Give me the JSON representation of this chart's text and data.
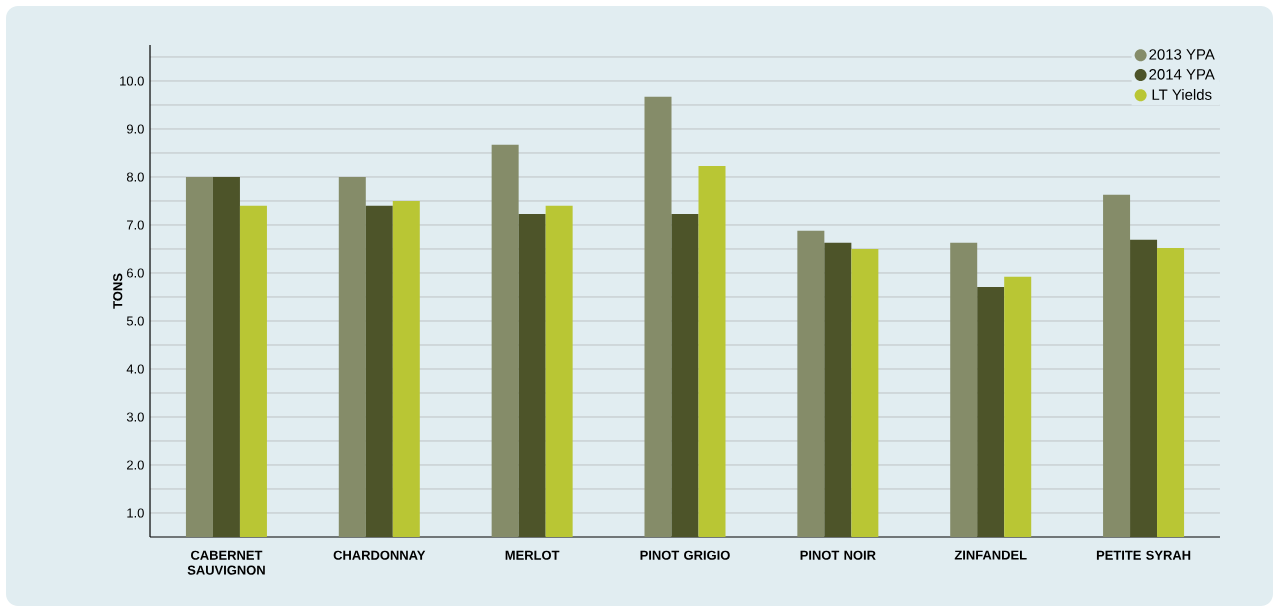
{
  "chart_data": {
    "type": "bar",
    "ylabel": "TONS",
    "categories": [
      "CABERNET SAUVIGNON",
      "CHARDONNAY",
      "MERLOT",
      "PINOT GRIGIO",
      "PINOT NOIR",
      "ZINFANDEL",
      "PETITE  SYRAH"
    ],
    "series": [
      {
        "name": "2013 YPA",
        "color": "#858c69",
        "values": [
          8.0,
          8.0,
          8.67,
          9.67,
          6.88,
          6.63,
          7.63
        ]
      },
      {
        "name": "2014 YPA",
        "color": "#4d5429",
        "values": [
          8.0,
          7.4,
          7.23,
          7.23,
          6.63,
          5.71,
          6.69
        ]
      },
      {
        "name": "LT Yields",
        "color": "#b9c634",
        "values": [
          7.4,
          7.5,
          7.4,
          8.23,
          6.5,
          5.92,
          6.52
        ]
      }
    ],
    "ylim": [
      0.5,
      10.75
    ],
    "yticks": [
      {
        "value": 1,
        "label": "1.0"
      },
      {
        "value": 1.5,
        "label": null
      },
      {
        "value": 2,
        "label": "2.0"
      },
      {
        "value": 2.5,
        "label": null
      },
      {
        "value": 3,
        "label": "3.0"
      },
      {
        "value": 3.5,
        "label": null
      },
      {
        "value": 4,
        "label": "4.0"
      },
      {
        "value": 4.5,
        "label": null
      },
      {
        "value": 5,
        "label": "5.0"
      },
      {
        "value": 5.5,
        "label": null
      },
      {
        "value": 6,
        "label": "6.0"
      },
      {
        "value": 6.5,
        "label": null
      },
      {
        "value": 7,
        "label": "7.0"
      },
      {
        "value": 7.5,
        "label": null
      },
      {
        "value": 8,
        "label": "8.0"
      },
      {
        "value": 8.5,
        "label": null
      },
      {
        "value": 9,
        "label": "9.0"
      },
      {
        "value": 9.5,
        "label": null
      },
      {
        "value": 10,
        "label": "10.0"
      },
      {
        "value": 10.5,
        "label": null
      }
    ],
    "grid": "y",
    "legend": "top right"
  }
}
